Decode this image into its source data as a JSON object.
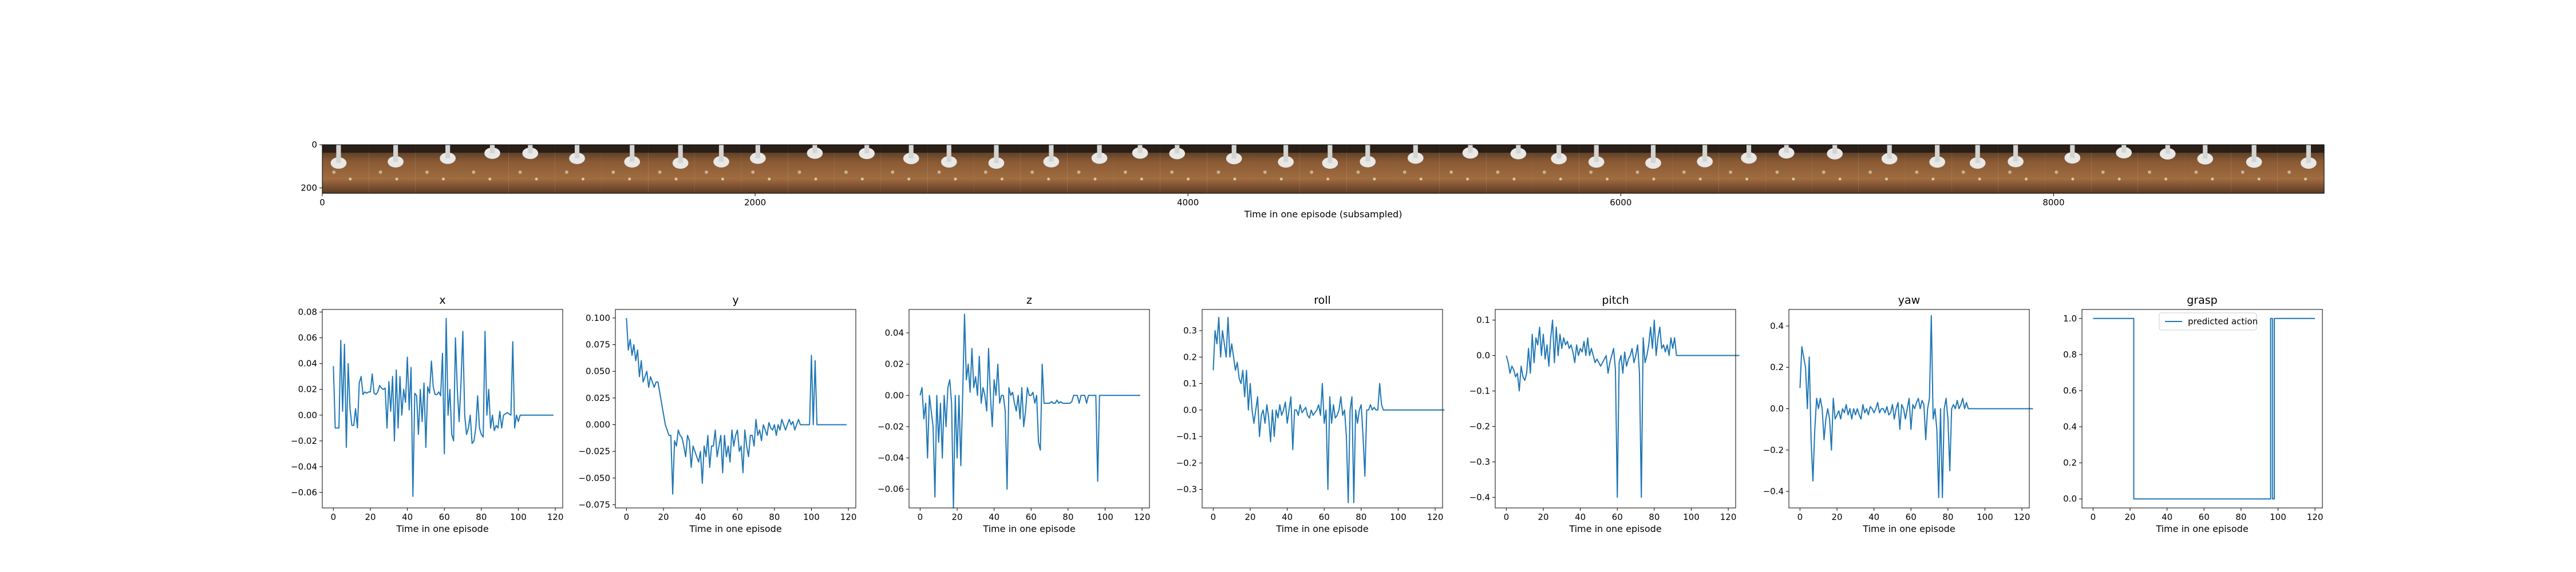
{
  "colors": {
    "line": "#1f77b4",
    "axes": "#000000",
    "background": "#ffffff"
  },
  "chart_data": [
    {
      "id": "filmstrip",
      "type": "image-strip",
      "xlabel": "Time in one episode (subsampled)",
      "xlim": [
        0,
        9250
      ],
      "ylim": [
        225,
        0
      ],
      "xticks": [
        0,
        2000,
        4000,
        6000,
        8000
      ],
      "yticks": [
        0,
        200
      ],
      "frame_count": 43,
      "frame_content": "robot gripper above a cardboard box with small objects"
    },
    {
      "id": "x",
      "type": "line",
      "title": "x",
      "xlabel": "Time in one episode",
      "xlim": [
        -6,
        124
      ],
      "ylim": [
        -0.072,
        0.082
      ],
      "xticks": [
        0,
        20,
        40,
        60,
        80,
        100,
        120
      ],
      "yticks": [
        -0.06,
        -0.04,
        -0.02,
        0.0,
        0.02,
        0.04,
        0.06,
        0.08
      ],
      "series": [
        {
          "values": [
            0.038,
            -0.01,
            -0.01,
            -0.01,
            0.058,
            0.003,
            0.055,
            -0.025,
            0.04,
            0.005,
            -0.008,
            -0.008,
            0.005,
            -0.01,
            0.025,
            0.03,
            0.016,
            0.018,
            0.017,
            0.018,
            0.018,
            0.032,
            0.017,
            0.016,
            0.018,
            0.023,
            0.021,
            0.02,
            0.021,
            -0.01,
            0.026,
            0.003,
            0.03,
            -0.02,
            0.035,
            -0.01,
            0.03,
            0.0,
            0.02,
            0.01,
            0.045,
            0.004,
            0.037,
            -0.063,
            0.017,
            0.015,
            -0.015,
            0.02,
            -0.005,
            0.025,
            -0.025,
            0.022,
            0.017,
            0.042,
            0.022,
            0.016,
            0.016,
            0.018,
            0.015,
            0.048,
            -0.03,
            0.075,
            0.0,
            0.02,
            -0.015,
            -0.02,
            0.06,
            0.02,
            -0.005,
            0.025,
            0.065,
            0.0,
            -0.015,
            -0.01,
            0.0,
            -0.022,
            -0.02,
            -0.01,
            0.015,
            -0.01,
            -0.015,
            -0.017,
            0.065,
            0.0,
            0.02,
            -0.01,
            0.0,
            -0.012,
            -0.008,
            -0.01,
            0.003,
            -0.01,
            0.0,
            0.001,
            0.002,
            0.001,
            0.0,
            0.057,
            -0.01,
            0.0,
            -0.005,
            0.0,
            0.0,
            0.0,
            0.0,
            0.0,
            0.0,
            0.0,
            0.0,
            0.0,
            0.0,
            0.0,
            0.0,
            0.0,
            0.0,
            0.0,
            0.0,
            0.0,
            0.0,
            0.0
          ]
        }
      ]
    },
    {
      "id": "y",
      "type": "line",
      "title": "y",
      "xlabel": "Time in one episode",
      "xlim": [
        -6,
        124
      ],
      "ylim": [
        -0.078,
        0.108
      ],
      "xticks": [
        0,
        20,
        40,
        60,
        80,
        100,
        120
      ],
      "yticks": [
        -0.075,
        -0.05,
        -0.025,
        0.0,
        0.025,
        0.05,
        0.075,
        0.1
      ],
      "series": [
        {
          "values": [
            0.1,
            0.07,
            0.08,
            0.065,
            0.075,
            0.06,
            0.07,
            0.045,
            0.06,
            0.04,
            0.045,
            0.05,
            0.035,
            0.045,
            0.04,
            0.035,
            0.04,
            0.04,
            0.03,
            0.02,
            0.01,
            0.0,
            -0.005,
            -0.01,
            -0.01,
            -0.065,
            -0.015,
            -0.02,
            -0.005,
            -0.01,
            -0.012,
            -0.02,
            -0.03,
            -0.01,
            -0.015,
            -0.04,
            -0.02,
            -0.025,
            -0.03,
            -0.035,
            -0.025,
            -0.055,
            -0.02,
            -0.03,
            -0.01,
            -0.04,
            -0.02,
            -0.02,
            -0.005,
            -0.03,
            -0.02,
            -0.01,
            -0.045,
            -0.01,
            -0.03,
            -0.02,
            -0.035,
            -0.005,
            -0.02,
            -0.01,
            -0.005,
            -0.025,
            -0.02,
            -0.045,
            -0.005,
            -0.02,
            -0.03,
            -0.01,
            -0.01,
            -0.02,
            0.005,
            -0.01,
            -0.005,
            -0.015,
            0.0,
            -0.005,
            -0.01,
            0.002,
            -0.003,
            -0.005,
            0.0,
            -0.01,
            0.0,
            -0.005,
            0.005,
            0.0,
            -0.005,
            0.0,
            0.005,
            0.0,
            0.003,
            -0.005,
            0.0,
            0.005,
            0.0,
            0.0,
            0.0,
            0.0,
            0.0,
            0.0,
            0.065,
            0.0,
            0.06,
            0.0,
            0.0,
            0.0,
            0.0,
            0.0,
            0.0,
            0.0,
            0.0,
            0.0,
            0.0,
            0.0,
            0.0,
            0.0,
            0.0,
            0.0,
            0.0,
            0.0
          ]
        }
      ]
    },
    {
      "id": "z",
      "type": "line",
      "title": "z",
      "xlabel": "Time in one episode",
      "xlim": [
        -6,
        124
      ],
      "ylim": [
        -0.072,
        0.055
      ],
      "xticks": [
        0,
        20,
        40,
        60,
        80,
        100,
        120
      ],
      "yticks": [
        -0.06,
        -0.04,
        -0.02,
        0.0,
        0.02,
        0.04
      ],
      "series": [
        {
          "values": [
            0.0,
            0.005,
            -0.015,
            -0.005,
            -0.04,
            0.0,
            -0.01,
            -0.02,
            -0.065,
            0.0,
            -0.03,
            -0.005,
            -0.04,
            0.0,
            -0.02,
            0.005,
            0.01,
            -0.005,
            -0.072,
            0.0,
            -0.04,
            0.0,
            -0.045,
            0.0,
            0.052,
            0.01,
            0.02,
            0.002,
            0.03,
            0.005,
            0.012,
            0.0,
            0.025,
            -0.005,
            0.005,
            0.0,
            -0.01,
            0.03,
            0.0,
            -0.02,
            0.01,
            0.0,
            0.02,
            -0.005,
            0.0,
            0.0,
            -0.01,
            -0.06,
            0.005,
            0.0,
            0.002,
            -0.005,
            -0.01,
            0.0,
            -0.015,
            0.005,
            -0.02,
            -0.01,
            0.005,
            0.0,
            0.0,
            0.002,
            -0.005,
            0.0,
            -0.03,
            -0.035,
            0.02,
            -0.005,
            -0.005,
            -0.005,
            -0.005,
            -0.004,
            -0.005,
            -0.005,
            -0.003,
            -0.005,
            -0.004,
            -0.005,
            -0.005,
            -0.005,
            -0.005,
            -0.005,
            -0.004,
            0.0,
            0.0,
            0.0,
            -0.005,
            0.0,
            0.0,
            0.0,
            -0.005,
            0.0,
            0.0,
            0.0,
            0.0,
            0.0,
            -0.055,
            0.0,
            0.0,
            0.0,
            0.0,
            0.0,
            0.0,
            0.0,
            0.0,
            0.0,
            0.0,
            0.0,
            0.0,
            0.0,
            0.0,
            0.0,
            0.0,
            0.0,
            0.0,
            0.0,
            0.0,
            0.0,
            0.0,
            0.0
          ]
        }
      ]
    },
    {
      "id": "roll",
      "type": "line",
      "title": "roll",
      "xlabel": "Time in one episode",
      "xlim": [
        -6,
        124
      ],
      "ylim": [
        -0.37,
        0.38
      ],
      "xticks": [
        0,
        20,
        40,
        60,
        80,
        100,
        120
      ],
      "yticks": [
        -0.3,
        -0.2,
        -0.1,
        0.0,
        0.1,
        0.2,
        0.3
      ],
      "series": [
        {
          "values": [
            0.15,
            0.3,
            0.25,
            0.35,
            0.2,
            0.3,
            0.25,
            0.2,
            0.35,
            0.2,
            0.25,
            0.2,
            0.15,
            0.18,
            0.12,
            0.1,
            0.15,
            0.05,
            0.15,
            0.0,
            0.1,
            0.0,
            -0.05,
            0.0,
            0.05,
            -0.1,
            -0.02,
            0.0,
            -0.05,
            0.02,
            -0.03,
            -0.12,
            0.0,
            -0.1,
            0.0,
            -0.03,
            0.02,
            -0.02,
            0.0,
            0.03,
            -0.05,
            0.0,
            0.05,
            -0.15,
            0.0,
            0.0,
            -0.02,
            0.02,
            -0.01,
            0.0,
            0.01,
            -0.02,
            -0.03,
            0.0,
            -0.02,
            -0.01,
            0.0,
            0.02,
            -0.02,
            0.1,
            -0.05,
            0.0,
            -0.3,
            0.05,
            -0.05,
            0.02,
            -0.03,
            -0.02,
            0.0,
            0.05,
            -0.02,
            0.0,
            -0.1,
            -0.35,
            0.0,
            0.05,
            -0.35,
            0.0,
            -0.05,
            0.0,
            0.02,
            -0.1,
            -0.25,
            0.0,
            0.0,
            0.02,
            0.0,
            0.01,
            0.0,
            0.0,
            0.1,
            0.02,
            0.0,
            0.0,
            0.0,
            0.0,
            0.0,
            0.0,
            0.0,
            0.0,
            0.0,
            0.0,
            0.0,
            0.0,
            0.0,
            0.0,
            0.0,
            0.0,
            0.0,
            0.0,
            0.0,
            0.0,
            0.0,
            0.0,
            0.0,
            0.0,
            0.0,
            0.0,
            0.0,
            0.0,
            0.0,
            0.0,
            0.0,
            0.0,
            0.0,
            0.0
          ]
        }
      ]
    },
    {
      "id": "pitch",
      "type": "line",
      "title": "pitch",
      "xlabel": "Time in one episode",
      "xlim": [
        -6,
        124
      ],
      "ylim": [
        -0.43,
        0.13
      ],
      "xticks": [
        0,
        20,
        40,
        60,
        80,
        100,
        120
      ],
      "yticks": [
        -0.4,
        -0.3,
        -0.2,
        -0.1,
        0.0,
        0.1
      ],
      "series": [
        {
          "values": [
            0.0,
            -0.02,
            -0.05,
            -0.03,
            -0.04,
            -0.06,
            -0.05,
            -0.1,
            -0.03,
            -0.06,
            -0.07,
            -0.05,
            0.02,
            -0.05,
            0.06,
            -0.02,
            0.05,
            0.03,
            0.08,
            0.0,
            0.06,
            -0.01,
            0.03,
            -0.03,
            0.05,
            0.1,
            -0.02,
            0.08,
            0.0,
            0.06,
            0.02,
            0.05,
            0.03,
            0.04,
            0.02,
            0.03,
            0.01,
            -0.02,
            0.03,
            0.0,
            0.02,
            0.01,
            0.04,
            0.0,
            0.05,
            0.0,
            0.02,
            0.0,
            -0.02,
            -0.01,
            -0.02,
            -0.03,
            -0.02,
            -0.01,
            0.0,
            -0.05,
            -0.02,
            0.0,
            0.02,
            -0.04,
            -0.4,
            -0.02,
            0.0,
            -0.05,
            0.01,
            -0.03,
            -0.01,
            0.0,
            0.02,
            -0.02,
            0.0,
            0.03,
            -0.05,
            -0.4,
            0.05,
            -0.02,
            0.0,
            0.03,
            0.08,
            0.02,
            0.1,
            0.0,
            0.05,
            0.08,
            0.02,
            0.03,
            0.01,
            0.03,
            0.0,
            0.05,
            0.02,
            0.05,
            0.0,
            0.0,
            0.0,
            0.0,
            0.0,
            0.0,
            0.0,
            0.0,
            0.0,
            0.0,
            0.0,
            0.0,
            0.0,
            0.0,
            0.0,
            0.0,
            0.0,
            0.0,
            0.0,
            0.0,
            0.0,
            0.0,
            0.0,
            0.0,
            0.0,
            0.0,
            0.0,
            0.0,
            0.0,
            0.0,
            0.0,
            0.0,
            0.0,
            0.0,
            0.0
          ]
        }
      ]
    },
    {
      "id": "yaw",
      "type": "line",
      "title": "yaw",
      "xlabel": "Time in one episode",
      "xlim": [
        -6,
        124
      ],
      "ylim": [
        -0.48,
        0.48
      ],
      "xticks": [
        0,
        20,
        40,
        60,
        80,
        100,
        120
      ],
      "yticks": [
        -0.4,
        -0.2,
        0.0,
        0.2,
        0.4
      ],
      "series": [
        {
          "values": [
            0.1,
            0.3,
            0.25,
            0.2,
            0.0,
            0.25,
            -0.15,
            -0.35,
            -0.1,
            0.05,
            0.0,
            0.05,
            0.0,
            -0.15,
            -0.05,
            0.0,
            -0.05,
            -0.2,
            0.05,
            -0.05,
            -0.03,
            -0.01,
            -0.05,
            0.0,
            -0.02,
            0.02,
            -0.03,
            0.0,
            -0.05,
            0.0,
            -0.03,
            0.0,
            -0.03,
            -0.05,
            0.02,
            -0.02,
            0.0,
            -0.03,
            0.01,
            0.0,
            -0.02,
            0.0,
            0.03,
            -0.02,
            0.0,
            0.0,
            -0.02,
            0.01,
            -0.03,
            -0.02,
            0.02,
            -0.05,
            0.0,
            0.03,
            -0.1,
            0.02,
            0.0,
            -0.05,
            0.0,
            0.05,
            -0.1,
            0.02,
            0.0,
            0.03,
            0.05,
            0.0,
            0.04,
            0.02,
            -0.15,
            0.0,
            0.05,
            0.45,
            -0.05,
            0.0,
            -0.1,
            -0.43,
            0.0,
            -0.43,
            0.0,
            0.05,
            -0.05,
            -0.3,
            0.0,
            0.02,
            0.0,
            0.04,
            0.0,
            0.02,
            0.05,
            0.0,
            0.03,
            0.0,
            0.0,
            0.0,
            0.0,
            0.0,
            0.0,
            0.0,
            0.0,
            0.0,
            0.0,
            0.0,
            0.0,
            0.0,
            0.0,
            0.0,
            0.0,
            0.0,
            0.0,
            0.0,
            0.0,
            0.0,
            0.0,
            0.0,
            0.0,
            0.0,
            0.0,
            0.0,
            0.0,
            0.0,
            0.0,
            0.0,
            0.0,
            0.0,
            0.0,
            0.0,
            0.0
          ]
        }
      ]
    },
    {
      "id": "grasp",
      "type": "line",
      "title": "grasp",
      "xlabel": "Time in one episode",
      "xlim": [
        -6,
        124
      ],
      "ylim": [
        -0.05,
        1.05
      ],
      "xticks": [
        0,
        20,
        40,
        60,
        80,
        100,
        120
      ],
      "yticks": [
        0.0,
        0.2,
        0.4,
        0.6,
        0.8,
        1.0
      ],
      "legend": {
        "position": "top-center",
        "entries": [
          "predicted action"
        ]
      },
      "series": [
        {
          "name": "predicted action",
          "segments": [
            [
              0,
              1.0
            ],
            [
              22,
              1.0
            ],
            [
              22,
              0.0
            ],
            [
              96,
              0.0
            ],
            [
              96,
              1.0
            ],
            [
              97,
              1.0
            ],
            [
              97,
              0.0
            ],
            [
              98,
              0.0
            ],
            [
              98,
              1.0
            ],
            [
              120,
              1.0
            ]
          ]
        }
      ]
    }
  ]
}
